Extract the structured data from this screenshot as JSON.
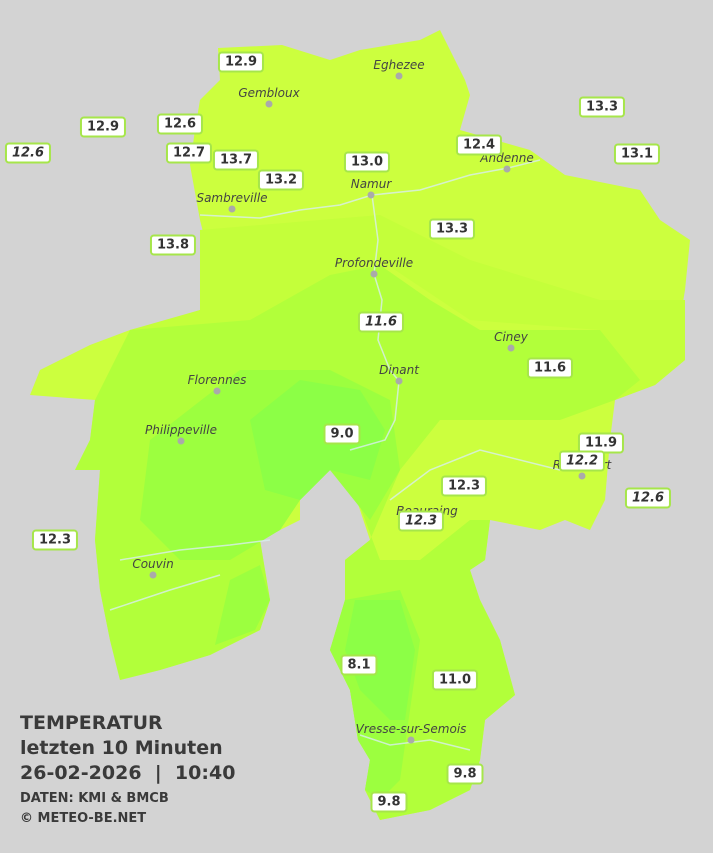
{
  "legend": {
    "title": "TEMPERATUR",
    "period": "letzten 10 Minuten",
    "datetime": "26-02-2026  |  10:40",
    "source": "DATEN: KMI & BMCB",
    "copyright": "© METEO-BE.NET"
  },
  "towns": [
    "Eghezee",
    "Gembloux",
    "Andenne",
    "Namur",
    "Sambreville",
    "Profondeville",
    "Ciney",
    "Florennes",
    "Dinant",
    "Philippeville",
    "Rochefort",
    "Beauraing",
    "Couvin",
    "Vresse-sur-Semois"
  ],
  "stations": [
    {
      "value": "12.9",
      "italic": false
    },
    {
      "value": "13.3",
      "italic": false
    },
    {
      "value": "12.9",
      "italic": false
    },
    {
      "value": "12.6",
      "italic": false
    },
    {
      "value": "12.6",
      "italic": true
    },
    {
      "value": "12.4",
      "italic": false
    },
    {
      "value": "12.7",
      "italic": false
    },
    {
      "value": "13.7",
      "italic": false
    },
    {
      "value": "13.0",
      "italic": false
    },
    {
      "value": "13.1",
      "italic": false
    },
    {
      "value": "13.2",
      "italic": false
    },
    {
      "value": "13.3",
      "italic": false
    },
    {
      "value": "13.8",
      "italic": false
    },
    {
      "value": "11.6",
      "italic": true
    },
    {
      "value": "11.6",
      "italic": false
    },
    {
      "value": "9.0",
      "italic": false
    },
    {
      "value": "11.9",
      "italic": false
    },
    {
      "value": "12.2",
      "italic": true
    },
    {
      "value": "12.3",
      "italic": false
    },
    {
      "value": "12.6",
      "italic": true
    },
    {
      "value": "12.3",
      "italic": true
    },
    {
      "value": "12.3",
      "italic": false
    },
    {
      "value": "8.1",
      "italic": false
    },
    {
      "value": "11.0",
      "italic": false
    },
    {
      "value": "9.8",
      "italic": false
    },
    {
      "value": "9.8",
      "italic": false
    }
  ]
}
